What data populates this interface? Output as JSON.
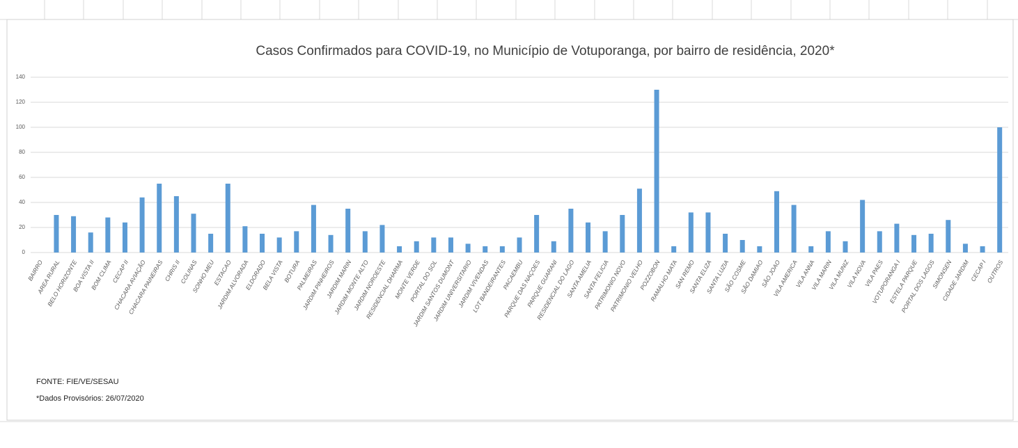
{
  "chart_data": {
    "type": "bar",
    "title": "Casos Confirmados para COVID-19,  no Município de Votuporanga, por bairro de residência, 2020*",
    "categories": [
      "BAIRRO",
      "AREA RURAL",
      "BELO HORIZONTE",
      "BOA VISTA II",
      "BOM CLIMA",
      "CECAP II",
      "CHACARA AVIAÇÃO",
      "CHACARA PAINEIRAS",
      "CHRIS II",
      "COLINAS",
      "SONHO MEU",
      "ESTACAO",
      "JARDIM ALVORADA",
      "ELDORADO",
      "BELA VISTA",
      "BOTURA",
      "PALMEIRAS",
      "JARDIM PINHEIROS",
      "JARDIM MARIN",
      "JARDIM MONTE ALTO",
      "JARDIM NOROESTE",
      "RESIDENCIAL DHARMA",
      "MONTE VERDE",
      "PORTAL DO SOL",
      "JARDIM SANTOS DUMONT",
      "JARDIM UNIVERSITARIO",
      "JARDIM VIVENDAS",
      "LOT BANDEIRANTES",
      "PACAEMBU",
      "PARQUE DAS NAÇOES",
      "PARQUE GUARANI",
      "RESIDENCIAL DO LAGO",
      "SANTA AMELIA",
      "SANTA FELICIA",
      "PATRIMONIO NOVO",
      "PATRIMONIO VELHO",
      "POZZOBON",
      "RAMALHO MATA",
      "SAN REMO",
      "SANTA ELIZA",
      "SANTA LUZIA",
      "SÃO COSME",
      "SÃO DAMIAO",
      "SÃO JOAO",
      "VILA AMERICA",
      "VILA ANNA",
      "VILA MARIN",
      "VILA MUNIZ",
      "VILA NOVA",
      "VILA PAES",
      "VOTUPORANGA I",
      "ESTELA PARQUE",
      "PORTAL DOS LAGOS",
      "SIMONSEN",
      "CIDADE JARDIM",
      "CECAP I",
      "OUTROS"
    ],
    "values": [
      null,
      30,
      29,
      16,
      28,
      24,
      44,
      55,
      45,
      31,
      15,
      55,
      21,
      15,
      12,
      17,
      38,
      14,
      35,
      17,
      22,
      5,
      9,
      12,
      12,
      7,
      5,
      5,
      12,
      30,
      9,
      35,
      24,
      17,
      30,
      51,
      130,
      5,
      32,
      32,
      15,
      10,
      5,
      49,
      38,
      5,
      17,
      9,
      42,
      17,
      23,
      14,
      15,
      26,
      7,
      5,
      100
    ],
    "color": "#5b9bd5",
    "ylim": [
      0,
      140
    ],
    "yticks": [
      0,
      20,
      40,
      60,
      80,
      100,
      120,
      140
    ],
    "grid": true,
    "source": "FONTE: FIE/VE/SESAU",
    "note": "*Dados Provisórios: 26/07/2020"
  }
}
